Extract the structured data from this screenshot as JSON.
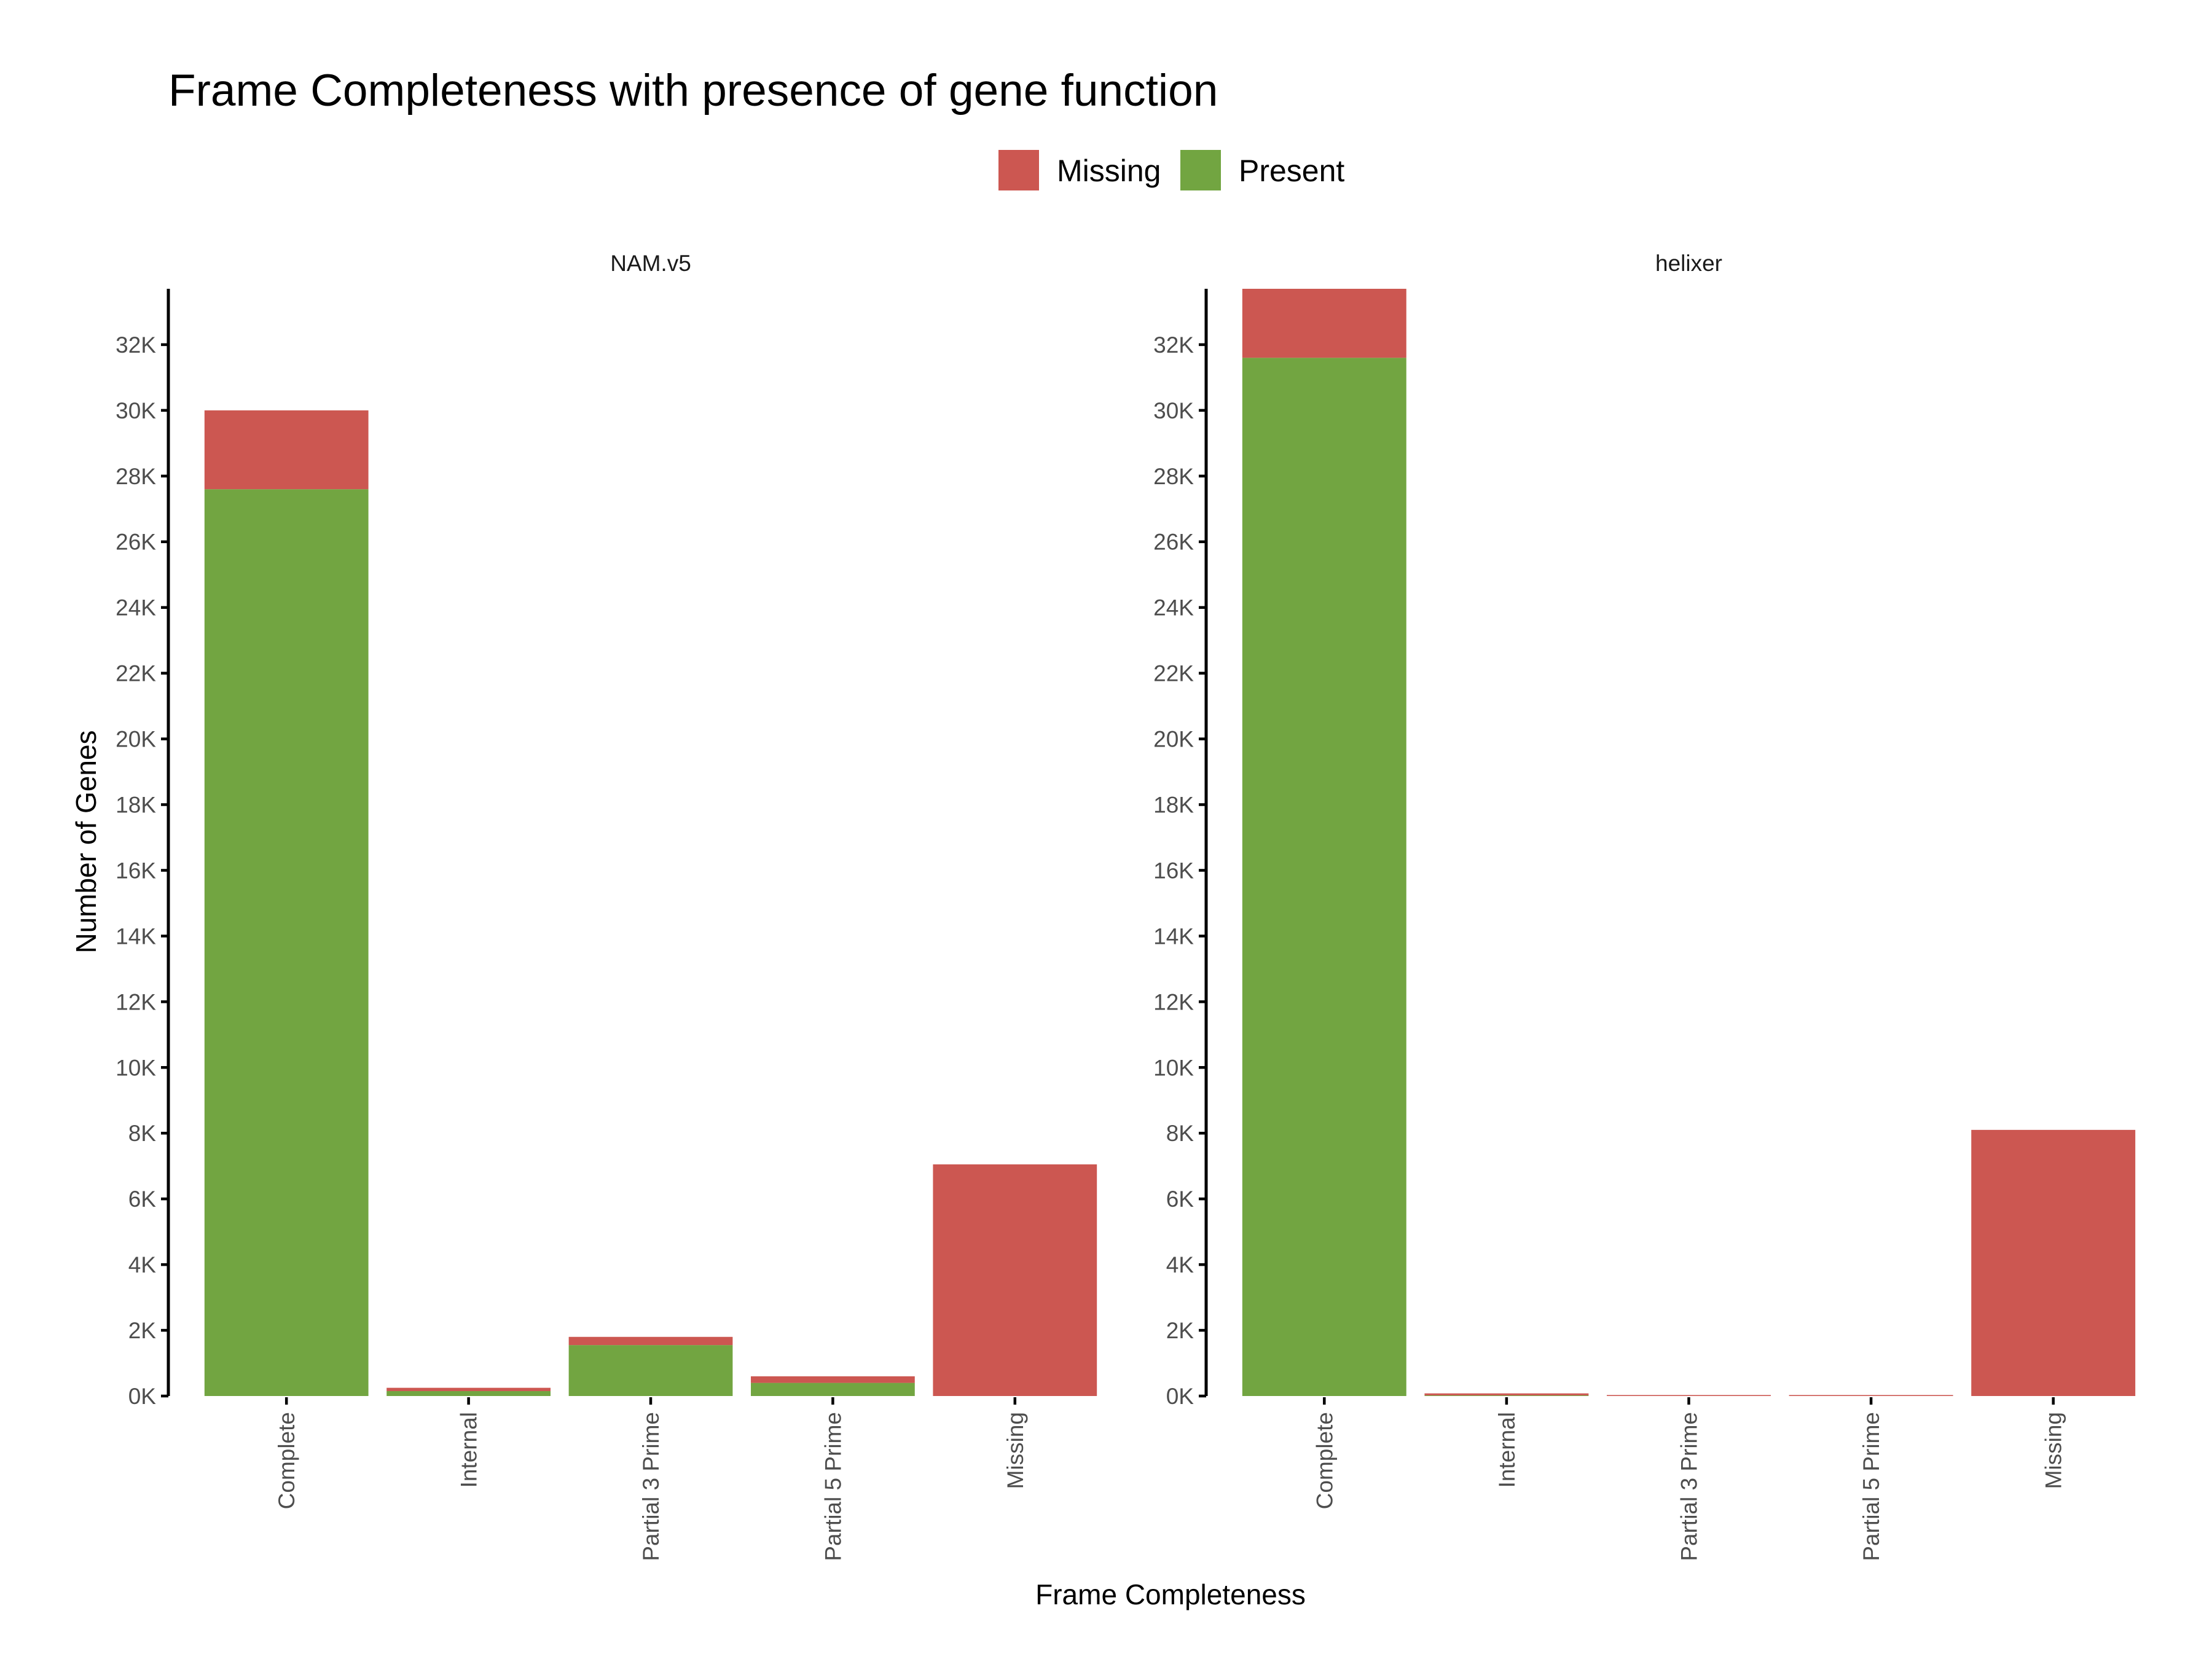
{
  "chart_data": {
    "type": "bar",
    "stacked": true,
    "title": "Frame Completeness with presence of gene function",
    "xlabel": "Frame Completeness",
    "ylabel": "Number of Genes",
    "ylim": [
      0,
      33700
    ],
    "y_ticks": [
      0,
      2000,
      4000,
      6000,
      8000,
      10000,
      12000,
      14000,
      16000,
      18000,
      20000,
      22000,
      24000,
      26000,
      28000,
      30000,
      32000
    ],
    "y_tick_labels": [
      "0K",
      "2K",
      "4K",
      "6K",
      "8K",
      "10K",
      "12K",
      "14K",
      "16K",
      "18K",
      "20K",
      "22K",
      "24K",
      "26K",
      "28K",
      "30K",
      "32K"
    ],
    "categories": [
      "Complete",
      "Internal",
      "Partial 3 Prime",
      "Partial 5 Prime",
      "Missing"
    ],
    "legend": {
      "position": "top",
      "items": [
        {
          "name": "Missing",
          "color": "#CC5751"
        },
        {
          "name": "Present",
          "color": "#72A541"
        }
      ]
    },
    "panels": [
      {
        "name": "NAM.v5",
        "series": [
          {
            "name": "Present",
            "values": [
              27600,
              150,
              1550,
              400,
              0
            ]
          },
          {
            "name": "Missing",
            "values": [
              2400,
              100,
              250,
              200,
              7050
            ]
          }
        ]
      },
      {
        "name": "helixer",
        "series": [
          {
            "name": "Present",
            "values": [
              31600,
              20,
              0,
              0,
              0
            ]
          },
          {
            "name": "Missing",
            "values": [
              2100,
              60,
              30,
              30,
              8100
            ]
          }
        ]
      }
    ]
  }
}
